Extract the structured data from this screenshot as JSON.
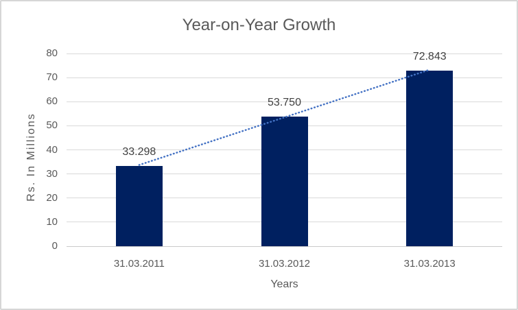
{
  "chart_data": {
    "type": "bar",
    "title": "Year-on-Year Growth",
    "categories": [
      "31.03.2011",
      "31.03.2012",
      "31.03.2013"
    ],
    "values": [
      33.298,
      53.75,
      72.843
    ],
    "data_labels": [
      "33.298",
      "53.750",
      "72.843"
    ],
    "xlabel": "Years",
    "ylabel": "Rs. In Millions",
    "ylim": [
      0,
      80
    ],
    "yticks": [
      0,
      10,
      20,
      30,
      40,
      50,
      60,
      70,
      80
    ],
    "grid": true,
    "legend": "none",
    "trendline": {
      "type": "linear",
      "style": "dotted",
      "color": "#4472C4"
    },
    "colors": {
      "bar": "#002060",
      "gridline": "#D9D9D9",
      "axis_text": "#595959",
      "data_label_text": "#404040",
      "title_text": "#595959",
      "frame_border": "#D6D6D6",
      "background": "#FFFFFF"
    }
  }
}
